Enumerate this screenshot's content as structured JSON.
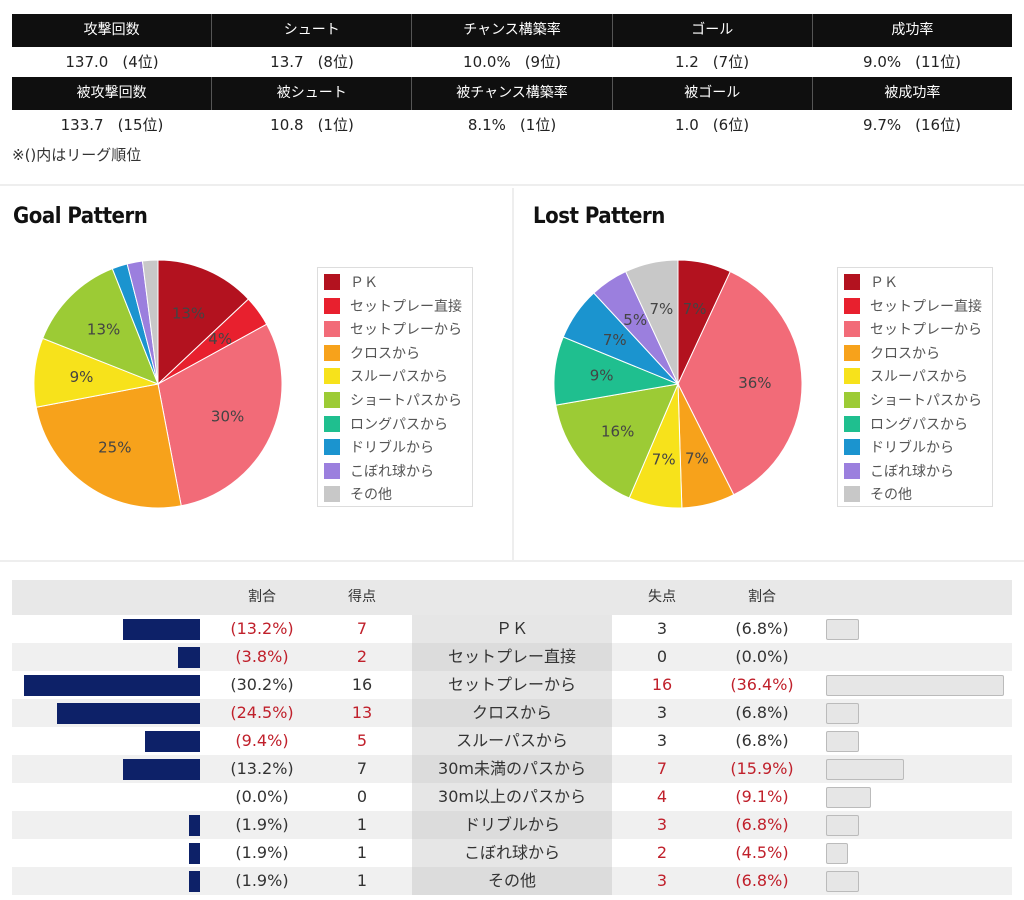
{
  "stats": {
    "row1_headers": [
      "攻撃回数",
      "シュート",
      "チャンス構築率",
      "ゴール",
      "成功率"
    ],
    "row1_values": [
      {
        "value": "137.0",
        "rank": "(4位)"
      },
      {
        "value": "13.7",
        "rank": "(8位)"
      },
      {
        "value": "10.0%",
        "rank": "(9位)"
      },
      {
        "value": "1.2",
        "rank": "(7位)"
      },
      {
        "value": "9.0%",
        "rank": "(11位)"
      }
    ],
    "row2_headers": [
      "被攻撃回数",
      "被シュート",
      "被チャンス構築率",
      "被ゴール",
      "被成功率"
    ],
    "row2_values": [
      {
        "value": "133.7",
        "rank": "(15位)"
      },
      {
        "value": "10.8",
        "rank": "(1位)"
      },
      {
        "value": "8.1%",
        "rank": "(1位)"
      },
      {
        "value": "1.0",
        "rank": "(6位)"
      },
      {
        "value": "9.7%",
        "rank": "(16位)"
      }
    ],
    "note": "※()内はリーグ順位"
  },
  "legend": {
    "labels": [
      "ＰＫ",
      "セットプレー直接",
      "セットプレーから",
      "クロスから",
      "スルーパスから",
      "ショートパスから",
      "ロングパスから",
      "ドリブルから",
      "こぼれ球から",
      "その他"
    ],
    "colors": [
      "#b3121f",
      "#e8202e",
      "#f26b78",
      "#f7a21b",
      "#f7e21b",
      "#9ccb35",
      "#1fbf8f",
      "#1b94cf",
      "#9b7fde",
      "#c8c8c8"
    ]
  },
  "chart_data": [
    {
      "type": "pie",
      "title": "Goal Pattern",
      "slices": [
        {
          "label": "ＰＫ",
          "value": 13,
          "text": "13%"
        },
        {
          "label": "セットプレー直接",
          "value": 4,
          "text": "4%"
        },
        {
          "label": "セットプレーから",
          "value": 30,
          "text": "30%"
        },
        {
          "label": "クロスから",
          "value": 25,
          "text": "25%"
        },
        {
          "label": "スルーパスから",
          "value": 9,
          "text": "9%"
        },
        {
          "label": "ショートパスから",
          "value": 13,
          "text": "13%"
        },
        {
          "label": "ロングパスから",
          "value": 0,
          "text": ""
        },
        {
          "label": "ドリブルから",
          "value": 2,
          "text": ""
        },
        {
          "label": "こぼれ球から",
          "value": 2,
          "text": ""
        },
        {
          "label": "その他",
          "value": 2,
          "text": ""
        }
      ]
    },
    {
      "type": "pie",
      "title": "Lost Pattern",
      "slices": [
        {
          "label": "ＰＫ",
          "value": 7,
          "text": "7%"
        },
        {
          "label": "セットプレー直接",
          "value": 0,
          "text": ""
        },
        {
          "label": "セットプレーから",
          "value": 36,
          "text": "36%"
        },
        {
          "label": "クロスから",
          "value": 7,
          "text": "7%"
        },
        {
          "label": "スルーパスから",
          "value": 7,
          "text": "7%"
        },
        {
          "label": "ショートパスから",
          "value": 16,
          "text": "16%"
        },
        {
          "label": "ロングパスから",
          "value": 9,
          "text": "9%"
        },
        {
          "label": "ドリブルから",
          "value": 7,
          "text": "7%"
        },
        {
          "label": "こぼれ球から",
          "value": 5,
          "text": "5%"
        },
        {
          "label": "その他",
          "value": 7,
          "text": "7%"
        }
      ]
    },
    {
      "type": "table",
      "headers": {
        "for_ratio": "割合",
        "goals_for": "得点",
        "goals_against": "失点",
        "against_ratio": "割合"
      },
      "rows": [
        {
          "category": "ＰＫ",
          "for_ratio": "(13.2%)",
          "for_pct": 13.2,
          "goals_for": "7",
          "for_red": true,
          "goals_against": "3",
          "against_ratio": "(6.8%)",
          "against_pct": 6.8,
          "against_red": false
        },
        {
          "category": "セットプレー直接",
          "for_ratio": "(3.8%)",
          "for_pct": 3.8,
          "goals_for": "2",
          "for_red": true,
          "goals_against": "0",
          "against_ratio": "(0.0%)",
          "against_pct": 0,
          "against_red": false
        },
        {
          "category": "セットプレーから",
          "for_ratio": "(30.2%)",
          "for_pct": 30.2,
          "goals_for": "16",
          "for_red": false,
          "goals_against": "16",
          "against_ratio": "(36.4%)",
          "against_pct": 36.4,
          "against_red": true
        },
        {
          "category": "クロスから",
          "for_ratio": "(24.5%)",
          "for_pct": 24.5,
          "goals_for": "13",
          "for_red": true,
          "goals_against": "3",
          "against_ratio": "(6.8%)",
          "against_pct": 6.8,
          "against_red": false
        },
        {
          "category": "スルーパスから",
          "for_ratio": "(9.4%)",
          "for_pct": 9.4,
          "goals_for": "5",
          "for_red": true,
          "goals_against": "3",
          "against_ratio": "(6.8%)",
          "against_pct": 6.8,
          "against_red": false
        },
        {
          "category": "30m未満のパスから",
          "for_ratio": "(13.2%)",
          "for_pct": 13.2,
          "goals_for": "7",
          "for_red": false,
          "goals_against": "7",
          "against_ratio": "(15.9%)",
          "against_pct": 15.9,
          "against_red": true
        },
        {
          "category": "30m以上のパスから",
          "for_ratio": "(0.0%)",
          "for_pct": 0,
          "goals_for": "0",
          "for_red": false,
          "goals_against": "4",
          "against_ratio": "(9.1%)",
          "against_pct": 9.1,
          "against_red": true
        },
        {
          "category": "ドリブルから",
          "for_ratio": "(1.9%)",
          "for_pct": 1.9,
          "goals_for": "1",
          "for_red": false,
          "goals_against": "3",
          "against_ratio": "(6.8%)",
          "against_pct": 6.8,
          "against_red": true
        },
        {
          "category": "こぼれ球から",
          "for_ratio": "(1.9%)",
          "for_pct": 1.9,
          "goals_for": "1",
          "for_red": false,
          "goals_against": "2",
          "against_ratio": "(4.5%)",
          "against_pct": 4.5,
          "against_red": true
        },
        {
          "category": "その他",
          "for_ratio": "(1.9%)",
          "for_pct": 1.9,
          "goals_for": "1",
          "for_red": false,
          "goals_against": "3",
          "against_ratio": "(6.8%)",
          "against_pct": 6.8,
          "against_red": true
        }
      ]
    }
  ]
}
